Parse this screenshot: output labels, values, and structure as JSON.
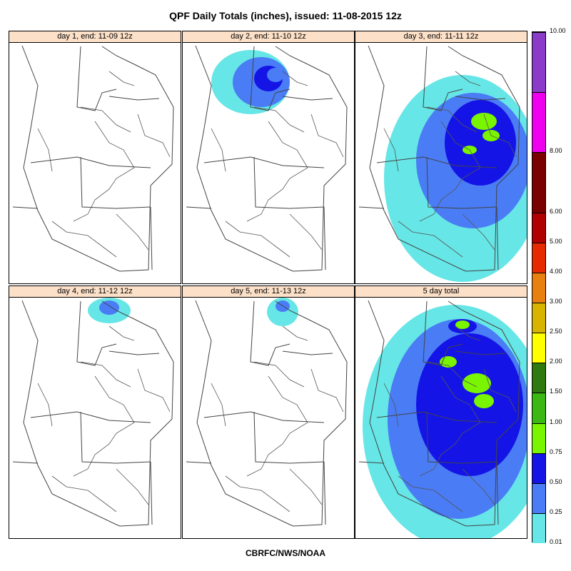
{
  "title": "QPF Daily Totals (inches),  issued: 11-08-2015 12z",
  "footer": "CBRFC/NWS/NOAA",
  "panels": [
    {
      "label": "day 1, end: 11-09 12z",
      "precip": "none"
    },
    {
      "label": "day 2, end: 11-10 12z",
      "precip": "north"
    },
    {
      "label": "day 3, end: 11-11 12z",
      "precip": "widespread"
    },
    {
      "label": "day 4, end: 11-12 12z",
      "precip": "far-north"
    },
    {
      "label": "day 5, end: 11-13 12z",
      "precip": "far-north-small"
    },
    {
      "label": "5 day total",
      "precip": "total"
    }
  ],
  "legend": {
    "ticks": [
      "10.00",
      "8.00",
      "6.00",
      "5.00",
      "4.00",
      "3.00",
      "2.50",
      "2.00",
      "1.50",
      "1.00",
      "0.75",
      "0.50",
      "0.25",
      "0.01"
    ],
    "bins": [
      {
        "min": 0.01,
        "max": 0.25,
        "color": "#66e6e6"
      },
      {
        "min": 0.25,
        "max": 0.5,
        "color": "#4a7cf5"
      },
      {
        "min": 0.5,
        "max": 0.75,
        "color": "#1414e6"
      },
      {
        "min": 0.75,
        "max": 1.0,
        "color": "#7af500"
      },
      {
        "min": 1.0,
        "max": 1.5,
        "color": "#3cb814"
      },
      {
        "min": 1.5,
        "max": 2.0,
        "color": "#2e7a10"
      },
      {
        "min": 2.0,
        "max": 2.5,
        "color": "#ffff00"
      },
      {
        "min": 2.5,
        "max": 3.0,
        "color": "#d6b400"
      },
      {
        "min": 3.0,
        "max": 4.0,
        "color": "#e88010"
      },
      {
        "min": 4.0,
        "max": 5.0,
        "color": "#e62a00"
      },
      {
        "min": 5.0,
        "max": 6.0,
        "color": "#b00000"
      },
      {
        "min": 6.0,
        "max": 8.0,
        "color": "#7a0000"
      },
      {
        "min": 8.0,
        "max": 10.0,
        "color": "#ee00ee"
      },
      {
        "min": 10.0,
        "max": null,
        "color": "#8a3cc8"
      }
    ]
  }
}
